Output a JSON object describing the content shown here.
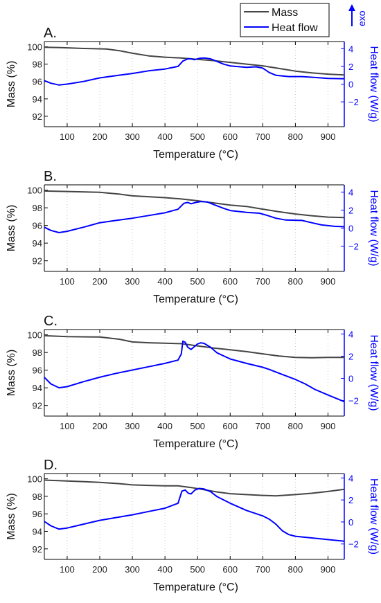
{
  "legend": {
    "items": [
      {
        "label": "Mass",
        "color": "#444444"
      },
      {
        "label": "Heat flow",
        "color": "#0000ff"
      }
    ],
    "exo_label": "exo"
  },
  "colors": {
    "mass": "#444444",
    "heat_flow": "#0000ff",
    "axis": "#000000",
    "right_axis": "#0000ff",
    "grid": "#c8c8c8"
  },
  "chart_data": [
    {
      "type": "line",
      "panel": "A.",
      "xlabel": "Temperature (°C)",
      "ylabel": "Mass (%)",
      "y2label": "Heat flow (W/g)",
      "xlim": [
        30,
        950
      ],
      "ylim": [
        90.8,
        100.6
      ],
      "y2lim": [
        -4.8,
        4.8
      ],
      "xticks": [
        100,
        200,
        300,
        400,
        500,
        600,
        700,
        800,
        900
      ],
      "yticks": [
        92,
        94,
        96,
        98,
        100
      ],
      "y2ticks": [
        -2,
        0,
        2,
        4
      ],
      "grid": "vertical dotted",
      "series": [
        {
          "name": "Mass",
          "axis": "left",
          "points": [
            [
              30,
              99.95
            ],
            [
              80,
              99.9
            ],
            [
              150,
              99.8
            ],
            [
              220,
              99.75
            ],
            [
              260,
              99.55
            ],
            [
              300,
              99.25
            ],
            [
              350,
              98.95
            ],
            [
              400,
              98.8
            ],
            [
              450,
              98.7
            ],
            [
              500,
              98.55
            ],
            [
              550,
              98.4
            ],
            [
              600,
              98.2
            ],
            [
              650,
              98.0
            ],
            [
              700,
              97.8
            ],
            [
              750,
              97.5
            ],
            [
              800,
              97.2
            ],
            [
              850,
              97.0
            ],
            [
              900,
              96.85
            ],
            [
              950,
              96.75
            ]
          ]
        },
        {
          "name": "Heat flow",
          "axis": "right",
          "points": [
            [
              30,
              0.4
            ],
            [
              50,
              0.1
            ],
            [
              75,
              -0.1
            ],
            [
              100,
              0.0
            ],
            [
              150,
              0.3
            ],
            [
              200,
              0.7
            ],
            [
              250,
              0.95
            ],
            [
              300,
              1.2
            ],
            [
              350,
              1.5
            ],
            [
              400,
              1.7
            ],
            [
              440,
              2.0
            ],
            [
              455,
              2.6
            ],
            [
              470,
              2.85
            ],
            [
              480,
              2.85
            ],
            [
              490,
              2.75
            ],
            [
              505,
              2.9
            ],
            [
              520,
              2.95
            ],
            [
              540,
              2.85
            ],
            [
              560,
              2.55
            ],
            [
              580,
              2.25
            ],
            [
              600,
              2.05
            ],
            [
              650,
              1.9
            ],
            [
              680,
              1.95
            ],
            [
              700,
              1.8
            ],
            [
              720,
              1.3
            ],
            [
              740,
              1.0
            ],
            [
              780,
              0.85
            ],
            [
              820,
              0.85
            ],
            [
              860,
              0.75
            ],
            [
              900,
              0.65
            ],
            [
              950,
              0.6
            ]
          ]
        }
      ]
    },
    {
      "type": "line",
      "panel": "B.",
      "xlabel": "Temperature (°C)",
      "ylabel": "Mass (%)",
      "y2label": "Heat flow (W/g)",
      "xlim": [
        30,
        950
      ],
      "ylim": [
        90.8,
        100.6
      ],
      "y2lim": [
        -4.8,
        4.8
      ],
      "xticks": [
        100,
        200,
        300,
        400,
        500,
        600,
        700,
        800,
        900
      ],
      "yticks": [
        92,
        94,
        96,
        98,
        100
      ],
      "y2ticks": [
        -2,
        0,
        2,
        4
      ],
      "grid": "vertical dotted",
      "series": [
        {
          "name": "Mass",
          "axis": "left",
          "points": [
            [
              30,
              99.9
            ],
            [
              100,
              99.85
            ],
            [
              200,
              99.75
            ],
            [
              260,
              99.55
            ],
            [
              300,
              99.35
            ],
            [
              400,
              99.15
            ],
            [
              450,
              99.0
            ],
            [
              500,
              98.8
            ],
            [
              550,
              98.55
            ],
            [
              600,
              98.3
            ],
            [
              650,
              98.15
            ],
            [
              700,
              97.85
            ],
            [
              750,
              97.55
            ],
            [
              800,
              97.3
            ],
            [
              850,
              97.1
            ],
            [
              900,
              96.95
            ],
            [
              950,
              96.9
            ]
          ]
        },
        {
          "name": "Heat flow",
          "axis": "right",
          "points": [
            [
              30,
              0.1
            ],
            [
              50,
              -0.25
            ],
            [
              75,
              -0.5
            ],
            [
              100,
              -0.35
            ],
            [
              150,
              0.1
            ],
            [
              200,
              0.6
            ],
            [
              250,
              0.85
            ],
            [
              300,
              1.1
            ],
            [
              350,
              1.4
            ],
            [
              400,
              1.7
            ],
            [
              440,
              2.1
            ],
            [
              458,
              2.75
            ],
            [
              470,
              2.85
            ],
            [
              480,
              2.7
            ],
            [
              495,
              2.85
            ],
            [
              510,
              2.95
            ],
            [
              530,
              2.9
            ],
            [
              550,
              2.6
            ],
            [
              580,
              2.2
            ],
            [
              600,
              1.95
            ],
            [
              650,
              1.75
            ],
            [
              690,
              1.65
            ],
            [
              710,
              1.45
            ],
            [
              740,
              1.1
            ],
            [
              770,
              0.9
            ],
            [
              820,
              0.85
            ],
            [
              850,
              0.6
            ],
            [
              880,
              0.35
            ],
            [
              920,
              0.2
            ],
            [
              950,
              0.15
            ]
          ]
        }
      ]
    },
    {
      "type": "line",
      "panel": "C.",
      "xlabel": "Temperature (°C)",
      "ylabel": "Mass (%)",
      "y2label": "Heat flow (W/g)",
      "xlim": [
        30,
        950
      ],
      "ylim": [
        90.8,
        100.6
      ],
      "y2lim": [
        -3.4,
        4.4
      ],
      "xticks": [
        100,
        200,
        300,
        400,
        500,
        600,
        700,
        800,
        900
      ],
      "yticks": [
        92,
        94,
        96,
        98,
        100
      ],
      "y2ticks": [
        -2,
        0,
        2,
        4
      ],
      "grid": "vertical dotted",
      "series": [
        {
          "name": "Mass",
          "axis": "left",
          "points": [
            [
              30,
              99.9
            ],
            [
              100,
              99.8
            ],
            [
              200,
              99.75
            ],
            [
              260,
              99.5
            ],
            [
              300,
              99.2
            ],
            [
              350,
              99.1
            ],
            [
              400,
              99.05
            ],
            [
              450,
              99.0
            ],
            [
              500,
              98.75
            ],
            [
              550,
              98.5
            ],
            [
              600,
              98.3
            ],
            [
              650,
              98.1
            ],
            [
              700,
              97.85
            ],
            [
              750,
              97.6
            ],
            [
              800,
              97.45
            ],
            [
              850,
              97.4
            ],
            [
              900,
              97.45
            ],
            [
              950,
              97.45
            ]
          ]
        },
        {
          "name": "Heat flow",
          "axis": "right",
          "points": [
            [
              30,
              0.1
            ],
            [
              50,
              -0.5
            ],
            [
              75,
              -0.85
            ],
            [
              100,
              -0.75
            ],
            [
              150,
              -0.3
            ],
            [
              200,
              0.1
            ],
            [
              250,
              0.45
            ],
            [
              300,
              0.75
            ],
            [
              350,
              1.05
            ],
            [
              400,
              1.35
            ],
            [
              440,
              1.65
            ],
            [
              450,
              2.2
            ],
            [
              455,
              3.35
            ],
            [
              462,
              3.25
            ],
            [
              470,
              2.8
            ],
            [
              480,
              2.6
            ],
            [
              490,
              2.85
            ],
            [
              500,
              3.1
            ],
            [
              510,
              3.2
            ],
            [
              520,
              3.15
            ],
            [
              540,
              2.8
            ],
            [
              560,
              2.3
            ],
            [
              600,
              1.75
            ],
            [
              650,
              1.35
            ],
            [
              700,
              1.0
            ],
            [
              720,
              0.8
            ],
            [
              760,
              0.35
            ],
            [
              800,
              -0.1
            ],
            [
              830,
              -0.5
            ],
            [
              860,
              -1.0
            ],
            [
              900,
              -1.5
            ],
            [
              950,
              -2.1
            ]
          ]
        }
      ]
    },
    {
      "type": "line",
      "panel": "D.",
      "xlabel": "Temperature (°C)",
      "ylabel": "Mass (%)",
      "y2label": "Heat flow (W/g)",
      "xlim": [
        30,
        950
      ],
      "ylim": [
        90.8,
        100.6
      ],
      "y2lim": [
        -3.4,
        4.4
      ],
      "xticks": [
        100,
        200,
        300,
        400,
        500,
        600,
        700,
        800,
        900
      ],
      "yticks": [
        92,
        94,
        96,
        98,
        100
      ],
      "y2ticks": [
        -2,
        0,
        2,
        4
      ],
      "grid": "vertical dotted",
      "series": [
        {
          "name": "Mass",
          "axis": "left",
          "points": [
            [
              30,
              99.85
            ],
            [
              100,
              99.75
            ],
            [
              200,
              99.6
            ],
            [
              260,
              99.45
            ],
            [
              300,
              99.3
            ],
            [
              350,
              99.25
            ],
            [
              400,
              99.2
            ],
            [
              440,
              99.2
            ],
            [
              480,
              99.0
            ],
            [
              520,
              98.75
            ],
            [
              560,
              98.5
            ],
            [
              600,
              98.3
            ],
            [
              650,
              98.2
            ],
            [
              700,
              98.1
            ],
            [
              740,
              98.05
            ],
            [
              800,
              98.2
            ],
            [
              850,
              98.35
            ],
            [
              900,
              98.55
            ],
            [
              950,
              98.8
            ]
          ]
        },
        {
          "name": "Heat flow",
          "axis": "right",
          "points": [
            [
              30,
              0.05
            ],
            [
              50,
              -0.35
            ],
            [
              75,
              -0.65
            ],
            [
              100,
              -0.55
            ],
            [
              150,
              -0.2
            ],
            [
              200,
              0.15
            ],
            [
              250,
              0.4
            ],
            [
              300,
              0.65
            ],
            [
              350,
              0.95
            ],
            [
              400,
              1.25
            ],
            [
              440,
              1.7
            ],
            [
              452,
              2.8
            ],
            [
              462,
              2.9
            ],
            [
              472,
              2.6
            ],
            [
              480,
              2.55
            ],
            [
              492,
              2.9
            ],
            [
              505,
              3.05
            ],
            [
              520,
              3.0
            ],
            [
              540,
              2.75
            ],
            [
              560,
              2.3
            ],
            [
              600,
              1.7
            ],
            [
              650,
              1.05
            ],
            [
              700,
              0.55
            ],
            [
              720,
              0.25
            ],
            [
              740,
              -0.2
            ],
            [
              760,
              -0.8
            ],
            [
              780,
              -1.15
            ],
            [
              800,
              -1.3
            ],
            [
              850,
              -1.45
            ],
            [
              900,
              -1.6
            ],
            [
              950,
              -1.75
            ]
          ]
        }
      ]
    }
  ]
}
